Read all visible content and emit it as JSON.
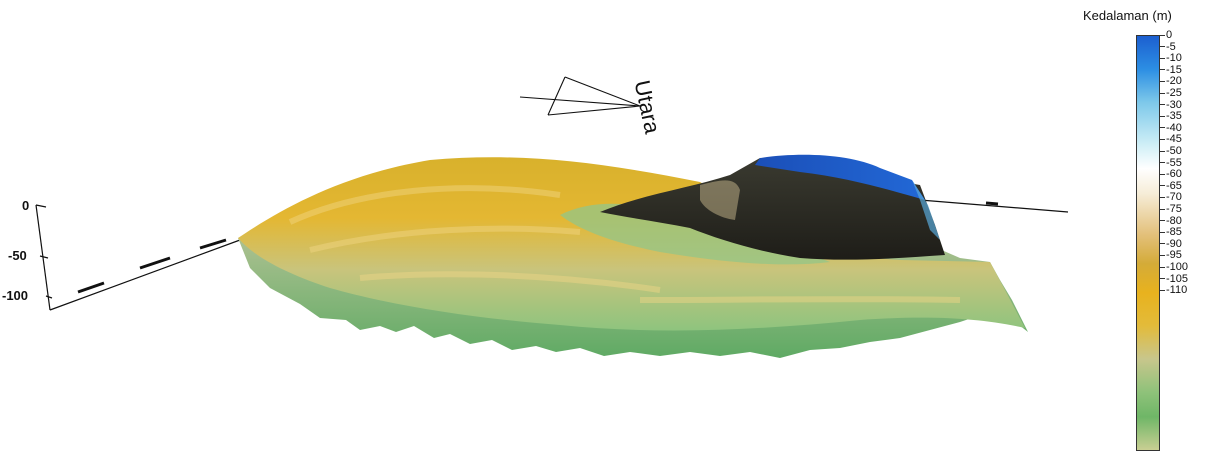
{
  "north_label": "Utara",
  "colorbar": {
    "title": "Kedalaman (m)",
    "ticks": [
      "0",
      "-5",
      "-10",
      "-15",
      "-20",
      "-25",
      "-30",
      "-35",
      "-40",
      "-45",
      "-50",
      "-55",
      "-60",
      "-65",
      "-70",
      "-75",
      "-80",
      "-85",
      "-90",
      "-95",
      "-100",
      "-105",
      "-110"
    ]
  },
  "z_axis": {
    "ticks": [
      "0",
      "-50",
      "-100"
    ]
  },
  "colors": {
    "deep_green": "#6fb667",
    "gold": "#e3b52a",
    "shallow_blue": "#1c5fd0",
    "dark_peak": "#2b2a22"
  }
}
